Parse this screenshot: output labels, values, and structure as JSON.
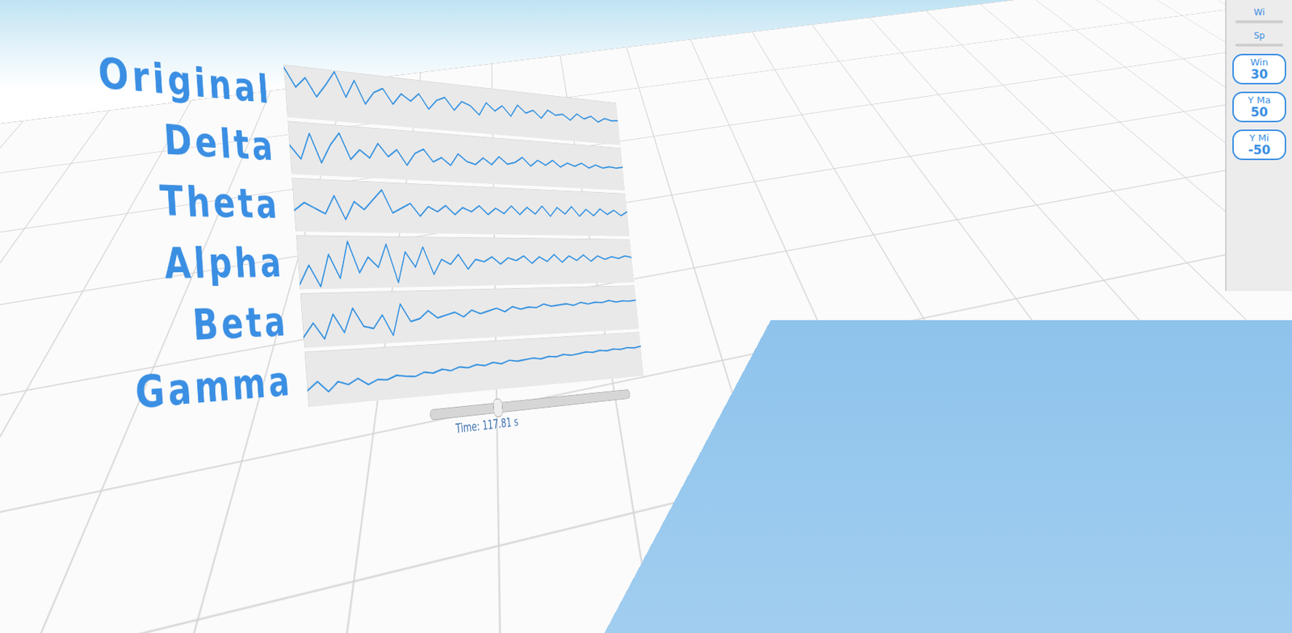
{
  "chart_data": [
    {
      "type": "line",
      "title": "Original",
      "color": "#2f8fe0",
      "xlim": [
        0,
        30
      ],
      "ylim": [
        -50,
        50
      ],
      "tick_labels": false,
      "x": [
        0,
        0.75,
        1.5,
        2.25,
        3,
        3.75,
        4.5,
        5.25,
        6,
        6.75,
        7.5,
        8.25,
        9,
        9.75,
        10.5,
        11.25,
        12,
        12.75,
        13.5,
        14.25,
        15,
        15.75,
        16.5,
        17.25,
        18,
        18.75,
        19.5,
        20.25,
        21,
        21.75,
        22.5,
        23.25,
        24,
        24.75,
        25.5,
        26.25,
        27,
        27.75,
        28.5,
        29.25,
        30
      ],
      "values": [
        45,
        10,
        30,
        -5,
        20,
        48,
        0,
        35,
        -10,
        15,
        25,
        -5,
        18,
        5,
        22,
        -8,
        12,
        20,
        -5,
        15,
        8,
        -10,
        18,
        2,
        15,
        -6,
        20,
        4,
        12,
        -4,
        16,
        6,
        10,
        -2,
        14,
        4,
        12,
        0,
        10,
        6,
        8
      ]
    },
    {
      "type": "line",
      "title": "Delta",
      "color": "#2f8fe0",
      "xlim": [
        0,
        30
      ],
      "ylim": [
        -50,
        50
      ],
      "tick_labels": false,
      "x": [
        0,
        0.75,
        1.5,
        2.25,
        3,
        3.75,
        4.5,
        5.25,
        6,
        6.75,
        7.5,
        8.25,
        9,
        9.75,
        10.5,
        11.25,
        12,
        12.75,
        13.5,
        14.25,
        15,
        15.75,
        16.5,
        17.25,
        18,
        18.75,
        19.5,
        20.25,
        21,
        21.75,
        22.5,
        23.25,
        24,
        24.75,
        25.5,
        26.25,
        27,
        27.75,
        28.5,
        29.25,
        30
      ],
      "values": [
        5,
        -20,
        30,
        -25,
        10,
        35,
        -15,
        5,
        -10,
        20,
        -5,
        10,
        -20,
        5,
        15,
        -10,
        0,
        -15,
        10,
        -5,
        -10,
        5,
        -8,
        10,
        -5,
        0,
        12,
        -6,
        8,
        -2,
        10,
        -4,
        6,
        0,
        8,
        -2,
        6,
        0,
        4,
        2,
        5
      ]
    },
    {
      "type": "line",
      "title": "Theta",
      "color": "#2f8fe0",
      "xlim": [
        0,
        30
      ],
      "ylim": [
        -50,
        50
      ],
      "tick_labels": false,
      "x": [
        0,
        0.75,
        1.5,
        2.25,
        3,
        3.75,
        4.5,
        5.25,
        6,
        6.75,
        7.5,
        8.25,
        9,
        9.75,
        10.5,
        11.25,
        12,
        12.75,
        13.5,
        14.25,
        15,
        15.75,
        16.5,
        17.25,
        18,
        18.75,
        19.5,
        20.25,
        21,
        21.75,
        22.5,
        23.25,
        24,
        24.75,
        25.5,
        26.25,
        27,
        27.75,
        28.5,
        29.25,
        30
      ],
      "values": [
        -10,
        5,
        -5,
        -15,
        20,
        -25,
        10,
        -5,
        15,
        35,
        -10,
        0,
        10,
        -15,
        5,
        -5,
        8,
        -10,
        5,
        -3,
        10,
        -8,
        6,
        -5,
        12,
        -6,
        10,
        -4,
        14,
        -8,
        12,
        -2,
        15,
        -6,
        10,
        -4,
        12,
        0,
        10,
        -2,
        8
      ]
    },
    {
      "type": "line",
      "title": "Alpha",
      "color": "#2f8fe0",
      "xlim": [
        0,
        30
      ],
      "ylim": [
        -50,
        50
      ],
      "tick_labels": false,
      "x": [
        0,
        0.75,
        1.5,
        2.25,
        3,
        3.75,
        4.5,
        5.25,
        6,
        6.75,
        7.5,
        8.25,
        9,
        9.75,
        10.5,
        11.25,
        12,
        12.75,
        13.5,
        14.25,
        15,
        15.75,
        16.5,
        17.25,
        18,
        18.75,
        19.5,
        20.25,
        21,
        21.75,
        22.5,
        23.25,
        24,
        24.75,
        25.5,
        26.25,
        27,
        27.75,
        28.5,
        29.25,
        30
      ],
      "values": [
        -40,
        -5,
        -45,
        15,
        -30,
        40,
        -20,
        10,
        -10,
        35,
        -40,
        20,
        -10,
        30,
        -25,
        5,
        -5,
        15,
        -15,
        5,
        0,
        10,
        -5,
        8,
        2,
        12,
        -4,
        10,
        0,
        15,
        -2,
        12,
        2,
        14,
        0,
        12,
        4,
        10,
        6,
        12,
        8
      ]
    },
    {
      "type": "line",
      "title": "Beta",
      "color": "#2f8fe0",
      "xlim": [
        0,
        30
      ],
      "ylim": [
        -50,
        50
      ],
      "tick_labels": false,
      "x": [
        0,
        0.75,
        1.5,
        2.25,
        3,
        3.75,
        4.5,
        5.25,
        6,
        6.75,
        7.5,
        8.25,
        9,
        9.75,
        10.5,
        11.25,
        12,
        12.75,
        13.5,
        14.25,
        15,
        15.75,
        16.5,
        17.25,
        18,
        18.75,
        19.5,
        20.25,
        21,
        21.75,
        22.5,
        23.25,
        24,
        24.75,
        25.5,
        26.25,
        27,
        27.75,
        28.5,
        29.25,
        30
      ],
      "values": [
        -30,
        -5,
        -35,
        10,
        -25,
        20,
        -15,
        -20,
        5,
        -35,
        25,
        -10,
        -5,
        10,
        -5,
        0,
        5,
        -5,
        8,
        0,
        5,
        10,
        2,
        12,
        6,
        10,
        8,
        15,
        10,
        12,
        14,
        10,
        16,
        12,
        15,
        14,
        18,
        14,
        16,
        15,
        17
      ]
    },
    {
      "type": "line",
      "title": "Gamma",
      "color": "#2f8fe0",
      "xlim": [
        0,
        30
      ],
      "ylim": [
        -50,
        50
      ],
      "tick_labels": false,
      "x": [
        0,
        0.75,
        1.5,
        2.25,
        3,
        3.75,
        4.5,
        5.25,
        6,
        6.75,
        7.5,
        8.25,
        9,
        9.75,
        10.5,
        11.25,
        12,
        12.75,
        13.5,
        14.25,
        15,
        15.75,
        16.5,
        17.25,
        18,
        18.75,
        19.5,
        20.25,
        21,
        21.75,
        22.5,
        23.25,
        24,
        24.75,
        25.5,
        26.25,
        27,
        27.75,
        28.5,
        29.25,
        30
      ],
      "values": [
        -20,
        -5,
        -25,
        -8,
        -15,
        -5,
        -18,
        -10,
        -12,
        -5,
        -8,
        -10,
        -3,
        -6,
        0,
        -4,
        2,
        -1,
        4,
        1,
        6,
        2,
        8,
        5,
        7,
        9,
        6,
        10,
        8,
        12,
        9,
        11,
        14,
        12,
        15,
        13,
        16,
        14,
        17,
        15,
        18
      ]
    }
  ],
  "slider": {
    "label": "Time: 117.81 s"
  },
  "side_panel": {
    "sliders": [
      "Wi",
      "Sp"
    ],
    "fields": [
      {
        "label": "Win",
        "value": 30
      },
      {
        "label": "Y Ma",
        "value": 50
      },
      {
        "label": "Y Mi",
        "value": -50
      }
    ]
  }
}
